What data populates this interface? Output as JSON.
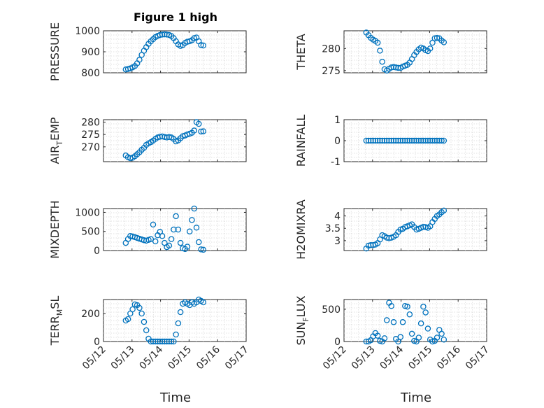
{
  "figure": {
    "title": "Figure 1 high",
    "marker_color": "#0072bd",
    "x_tick_labels": [
      "05/12",
      "05/13",
      "05/14",
      "05/15",
      "05/16",
      "05/17"
    ],
    "xlabel": "Time"
  },
  "chart_data": [
    {
      "type": "scatter",
      "id": "pressure",
      "title": "Figure 1 high",
      "ylabel": "PRESSURE",
      "xlim": [
        0,
        5
      ],
      "ylim": [
        800,
        1000
      ],
      "yticks": [
        800,
        900,
        1000
      ],
      "points": [
        [
          0.78,
          816
        ],
        [
          0.86,
          818
        ],
        [
          0.94,
          821
        ],
        [
          1.02,
          826
        ],
        [
          1.1,
          832
        ],
        [
          1.18,
          845
        ],
        [
          1.26,
          862
        ],
        [
          1.34,
          885
        ],
        [
          1.42,
          905
        ],
        [
          1.5,
          922
        ],
        [
          1.58,
          938
        ],
        [
          1.66,
          950
        ],
        [
          1.74,
          960
        ],
        [
          1.82,
          970
        ],
        [
          1.9,
          976
        ],
        [
          1.98,
          980
        ],
        [
          2.06,
          982
        ],
        [
          2.14,
          983
        ],
        [
          2.22,
          982
        ],
        [
          2.3,
          980
        ],
        [
          2.38,
          975
        ],
        [
          2.46,
          965
        ],
        [
          2.54,
          950
        ],
        [
          2.62,
          935
        ],
        [
          2.7,
          928
        ],
        [
          2.78,
          932
        ],
        [
          2.86,
          942
        ],
        [
          2.94,
          948
        ],
        [
          3.02,
          950
        ],
        [
          3.1,
          955
        ],
        [
          3.18,
          965
        ],
        [
          3.26,
          968
        ],
        [
          3.34,
          950
        ],
        [
          3.42,
          932
        ],
        [
          3.5,
          930
        ]
      ]
    },
    {
      "type": "scatter",
      "id": "theta",
      "ylabel": "THETA",
      "xlim": [
        0,
        5
      ],
      "ylim": [
        274.5,
        284
      ],
      "yticks": [
        275,
        280
      ],
      "points": [
        [
          0.78,
          283.6
        ],
        [
          0.86,
          283.0
        ],
        [
          0.94,
          282.4
        ],
        [
          1.02,
          282.0
        ],
        [
          1.1,
          281.7
        ],
        [
          1.18,
          281.3
        ],
        [
          1.26,
          279.5
        ],
        [
          1.34,
          277.0
        ],
        [
          1.42,
          275.3
        ],
        [
          1.5,
          275.0
        ],
        [
          1.58,
          275.4
        ],
        [
          1.66,
          275.7
        ],
        [
          1.74,
          275.8
        ],
        [
          1.82,
          275.7
        ],
        [
          1.9,
          275.6
        ],
        [
          1.98,
          275.6
        ],
        [
          2.06,
          275.9
        ],
        [
          2.14,
          276.1
        ],
        [
          2.22,
          276.3
        ],
        [
          2.3,
          276.8
        ],
        [
          2.38,
          277.6
        ],
        [
          2.46,
          278.5
        ],
        [
          2.54,
          279.2
        ],
        [
          2.62,
          279.8
        ],
        [
          2.7,
          280.2
        ],
        [
          2.78,
          280.0
        ],
        [
          2.86,
          279.6
        ],
        [
          2.94,
          279.4
        ],
        [
          3.02,
          280.0
        ],
        [
          3.1,
          281.3
        ],
        [
          3.18,
          282.3
        ],
        [
          3.26,
          282.4
        ],
        [
          3.34,
          282.3
        ],
        [
          3.42,
          281.8
        ],
        [
          3.5,
          281.4
        ]
      ]
    },
    {
      "type": "scatter",
      "id": "air_temp",
      "ylabel": "AIR_TEMP",
      "xlim": [
        0,
        5
      ],
      "ylim": [
        264,
        281
      ],
      "yticks": [
        270,
        275,
        280
      ],
      "points": [
        [
          0.78,
          266.5
        ],
        [
          0.86,
          265.8
        ],
        [
          0.94,
          265.4
        ],
        [
          1.02,
          265.6
        ],
        [
          1.1,
          266.2
        ],
        [
          1.18,
          267.0
        ],
        [
          1.26,
          267.8
        ],
        [
          1.34,
          268.8
        ],
        [
          1.42,
          269.6
        ],
        [
          1.5,
          270.8
        ],
        [
          1.58,
          271.4
        ],
        [
          1.66,
          271.9
        ],
        [
          1.74,
          272.5
        ],
        [
          1.82,
          273.2
        ],
        [
          1.9,
          273.8
        ],
        [
          1.98,
          274.1
        ],
        [
          2.06,
          274.2
        ],
        [
          2.14,
          274.0
        ],
        [
          2.22,
          273.8
        ],
        [
          2.3,
          274.0
        ],
        [
          2.38,
          273.8
        ],
        [
          2.46,
          273.2
        ],
        [
          2.54,
          272.2
        ],
        [
          2.62,
          272.6
        ],
        [
          2.7,
          273.5
        ],
        [
          2.78,
          274.3
        ],
        [
          2.86,
          274.6
        ],
        [
          2.94,
          275.0
        ],
        [
          3.02,
          275.3
        ],
        [
          3.1,
          275.7
        ],
        [
          3.18,
          276.6
        ],
        [
          3.26,
          280.0
        ],
        [
          3.34,
          279.3
        ],
        [
          3.42,
          276.2
        ],
        [
          3.5,
          276.3
        ]
      ]
    },
    {
      "type": "scatter",
      "id": "rainfall",
      "ylabel": "RAINFALL",
      "xlim": [
        0,
        5
      ],
      "ylim": [
        -1,
        1
      ],
      "yticks": [
        -1,
        0,
        1
      ],
      "points": [
        [
          0.78,
          0
        ],
        [
          0.86,
          0
        ],
        [
          0.94,
          0
        ],
        [
          1.02,
          0
        ],
        [
          1.1,
          0
        ],
        [
          1.18,
          0
        ],
        [
          1.26,
          0
        ],
        [
          1.34,
          0
        ],
        [
          1.42,
          0
        ],
        [
          1.5,
          0
        ],
        [
          1.58,
          0
        ],
        [
          1.66,
          0
        ],
        [
          1.74,
          0
        ],
        [
          1.82,
          0
        ],
        [
          1.9,
          0
        ],
        [
          1.98,
          0
        ],
        [
          2.06,
          0
        ],
        [
          2.14,
          0
        ],
        [
          2.22,
          0
        ],
        [
          2.3,
          0
        ],
        [
          2.38,
          0
        ],
        [
          2.46,
          0
        ],
        [
          2.54,
          0
        ],
        [
          2.62,
          0
        ],
        [
          2.7,
          0
        ],
        [
          2.78,
          0
        ],
        [
          2.86,
          0
        ],
        [
          2.94,
          0
        ],
        [
          3.02,
          0
        ],
        [
          3.1,
          0
        ],
        [
          3.18,
          0
        ],
        [
          3.26,
          0
        ],
        [
          3.34,
          0
        ],
        [
          3.42,
          0
        ],
        [
          3.5,
          0
        ]
      ]
    },
    {
      "type": "scatter",
      "id": "mixdepth",
      "ylabel": "MIXDEPTH",
      "xlim": [
        0,
        5
      ],
      "ylim": [
        0,
        1100
      ],
      "yticks": [
        0,
        500,
        1000
      ],
      "points": [
        [
          0.78,
          200
        ],
        [
          0.86,
          300
        ],
        [
          0.94,
          380
        ],
        [
          1.02,
          370
        ],
        [
          1.1,
          350
        ],
        [
          1.18,
          330
        ],
        [
          1.26,
          310
        ],
        [
          1.34,
          290
        ],
        [
          1.42,
          270
        ],
        [
          1.5,
          260
        ],
        [
          1.58,
          280
        ],
        [
          1.66,
          300
        ],
        [
          1.74,
          680
        ],
        [
          1.82,
          240
        ],
        [
          1.9,
          400
        ],
        [
          1.98,
          490
        ],
        [
          2.06,
          380
        ],
        [
          2.14,
          200
        ],
        [
          2.22,
          90
        ],
        [
          2.3,
          130
        ],
        [
          2.38,
          300
        ],
        [
          2.46,
          550
        ],
        [
          2.54,
          900
        ],
        [
          2.62,
          550
        ],
        [
          2.7,
          200
        ],
        [
          2.78,
          60
        ],
        [
          2.86,
          40
        ],
        [
          2.94,
          100
        ],
        [
          3.02,
          500
        ],
        [
          3.1,
          800
        ],
        [
          3.18,
          1100
        ],
        [
          3.26,
          600
        ],
        [
          3.34,
          220
        ],
        [
          3.42,
          30
        ],
        [
          3.5,
          20
        ]
      ]
    },
    {
      "type": "scatter",
      "id": "h2omixra",
      "ylabel": "H2OMIXRA",
      "xlim": [
        0,
        5
      ],
      "ylim": [
        2.6,
        4.3
      ],
      "yticks": [
        3,
        3.5,
        4
      ],
      "points": [
        [
          0.78,
          2.68
        ],
        [
          0.86,
          2.8
        ],
        [
          0.94,
          2.82
        ],
        [
          1.02,
          2.82
        ],
        [
          1.1,
          2.84
        ],
        [
          1.18,
          2.9
        ],
        [
          1.26,
          3.05
        ],
        [
          1.34,
          3.22
        ],
        [
          1.42,
          3.18
        ],
        [
          1.5,
          3.12
        ],
        [
          1.58,
          3.1
        ],
        [
          1.66,
          3.12
        ],
        [
          1.74,
          3.16
        ],
        [
          1.82,
          3.22
        ],
        [
          1.9,
          3.35
        ],
        [
          1.98,
          3.45
        ],
        [
          2.06,
          3.48
        ],
        [
          2.14,
          3.55
        ],
        [
          2.22,
          3.58
        ],
        [
          2.3,
          3.62
        ],
        [
          2.38,
          3.66
        ],
        [
          2.46,
          3.55
        ],
        [
          2.54,
          3.45
        ],
        [
          2.62,
          3.48
        ],
        [
          2.7,
          3.52
        ],
        [
          2.78,
          3.56
        ],
        [
          2.86,
          3.55
        ],
        [
          2.94,
          3.52
        ],
        [
          3.02,
          3.58
        ],
        [
          3.1,
          3.75
        ],
        [
          3.18,
          3.88
        ],
        [
          3.26,
          4.0
        ],
        [
          3.34,
          4.06
        ],
        [
          3.42,
          4.15
        ],
        [
          3.5,
          4.22
        ]
      ]
    },
    {
      "type": "scatter",
      "id": "terr_msl",
      "ylabel": "TERR_MSL",
      "xlim": [
        0,
        5
      ],
      "ylim": [
        0,
        300
      ],
      "yticks": [
        0,
        200
      ],
      "points": [
        [
          0.78,
          150
        ],
        [
          0.86,
          160
        ],
        [
          0.94,
          200
        ],
        [
          1.02,
          230
        ],
        [
          1.1,
          265
        ],
        [
          1.18,
          260
        ],
        [
          1.26,
          240
        ],
        [
          1.34,
          200
        ],
        [
          1.42,
          140
        ],
        [
          1.5,
          80
        ],
        [
          1.58,
          20
        ],
        [
          1.66,
          0
        ],
        [
          1.74,
          0
        ],
        [
          1.82,
          0
        ],
        [
          1.9,
          0
        ],
        [
          1.98,
          0
        ],
        [
          2.06,
          0
        ],
        [
          2.14,
          0
        ],
        [
          2.22,
          0
        ],
        [
          2.3,
          0
        ],
        [
          2.38,
          0
        ],
        [
          2.46,
          0
        ],
        [
          2.54,
          50
        ],
        [
          2.62,
          130
        ],
        [
          2.7,
          210
        ],
        [
          2.78,
          270
        ],
        [
          2.86,
          280
        ],
        [
          2.94,
          270
        ],
        [
          3.02,
          260
        ],
        [
          3.1,
          280
        ],
        [
          3.18,
          270
        ],
        [
          3.26,
          280
        ],
        [
          3.34,
          300
        ],
        [
          3.42,
          290
        ],
        [
          3.5,
          280
        ]
      ]
    },
    {
      "type": "scatter",
      "id": "sun_flux",
      "ylabel": "SUN_FLUX",
      "xlim": [
        0,
        5
      ],
      "ylim": [
        0,
        650
      ],
      "yticks": [
        0,
        500
      ],
      "points": [
        [
          0.78,
          0
        ],
        [
          0.86,
          0
        ],
        [
          0.94,
          20
        ],
        [
          1.02,
          80
        ],
        [
          1.1,
          130
        ],
        [
          1.18,
          90
        ],
        [
          1.26,
          10
        ],
        [
          1.34,
          0
        ],
        [
          1.42,
          50
        ],
        [
          1.5,
          330
        ],
        [
          1.58,
          600
        ],
        [
          1.66,
          550
        ],
        [
          1.74,
          300
        ],
        [
          1.82,
          40
        ],
        [
          1.9,
          0
        ],
        [
          1.98,
          70
        ],
        [
          2.06,
          300
        ],
        [
          2.14,
          550
        ],
        [
          2.22,
          540
        ],
        [
          2.3,
          420
        ],
        [
          2.38,
          120
        ],
        [
          2.46,
          10
        ],
        [
          2.54,
          0
        ],
        [
          2.62,
          60
        ],
        [
          2.7,
          280
        ],
        [
          2.78,
          540
        ],
        [
          2.86,
          450
        ],
        [
          2.94,
          200
        ],
        [
          3.02,
          30
        ],
        [
          3.1,
          0
        ],
        [
          3.18,
          10
        ],
        [
          3.26,
          60
        ],
        [
          3.34,
          180
        ],
        [
          3.42,
          120
        ],
        [
          3.5,
          30
        ]
      ]
    }
  ]
}
